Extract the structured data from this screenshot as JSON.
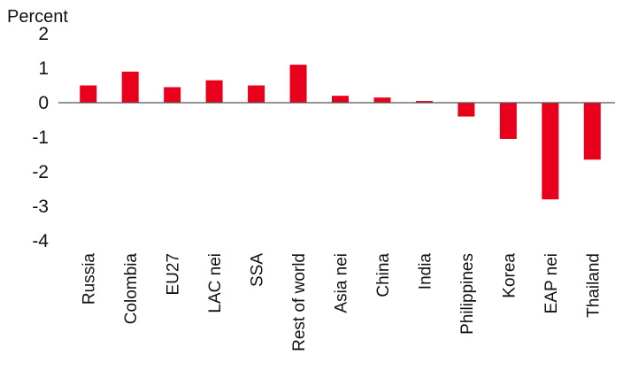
{
  "chart_data": {
    "type": "bar",
    "title": "",
    "xlabel": "",
    "ylabel": "Percent",
    "ylim": [
      -4,
      2
    ],
    "yticks": [
      2,
      1,
      0,
      -1,
      -2,
      -3,
      -4
    ],
    "grid": false,
    "categories": [
      "Russia",
      "Colombia",
      "EU27",
      "LAC nei",
      "SSA",
      "Rest of world",
      "Asia nei",
      "China",
      "India",
      "Philippines",
      "Korea",
      "EAP nei",
      "Thailand"
    ],
    "values": [
      0.5,
      0.9,
      0.45,
      0.65,
      0.5,
      1.1,
      0.2,
      0.15,
      0.05,
      -0.4,
      -1.05,
      -2.8,
      -1.65
    ],
    "bar_color": "#e8001c"
  }
}
